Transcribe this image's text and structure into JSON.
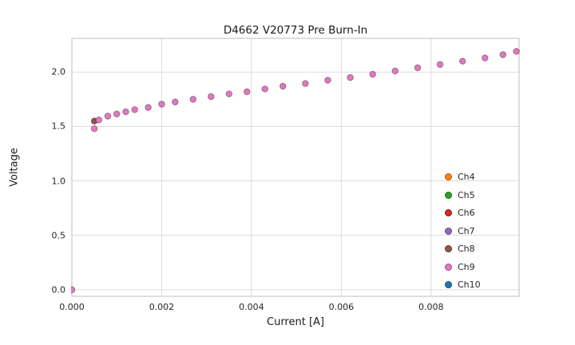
{
  "chart_data": {
    "type": "scatter",
    "title": "D4662 V20773 Pre Burn-In",
    "xlabel": "Current [A]",
    "ylabel": "Voltage",
    "xlim": [
      0,
      0.00996
    ],
    "ylim": [
      -0.06,
      2.31
    ],
    "grid": true,
    "legend_position": "lower right",
    "xticks": {
      "values": [
        0,
        0.002,
        0.004,
        0.006,
        0.008
      ],
      "labels": [
        "0.000",
        "0.002",
        "0.004",
        "0.006",
        "0.008"
      ]
    },
    "yticks": {
      "values": [
        0,
        0.5,
        1.0,
        1.5,
        2.0
      ],
      "labels": [
        "0.0",
        "0.5",
        "1.0",
        "1.5",
        "2.0"
      ]
    },
    "series": [
      {
        "name": "Ch4",
        "color": "#ff7f0e",
        "points": []
      },
      {
        "name": "Ch5",
        "color": "#2ca02c",
        "points": []
      },
      {
        "name": "Ch6",
        "color": "#d62728",
        "points": []
      },
      {
        "name": "Ch7",
        "color": "#9467bd",
        "points": []
      },
      {
        "name": "Ch8",
        "color": "#8c564b",
        "points": [
          [
            0.0005,
            1.55
          ]
        ]
      },
      {
        "name": "Ch9",
        "color": "#e377c2",
        "points": [
          [
            0.0,
            0.0
          ],
          [
            0.0005,
            1.48
          ],
          [
            0.0006,
            1.56
          ],
          [
            0.0008,
            1.595
          ],
          [
            0.001,
            1.615
          ],
          [
            0.0012,
            1.635
          ],
          [
            0.0014,
            1.655
          ],
          [
            0.0017,
            1.675
          ],
          [
            0.002,
            1.705
          ],
          [
            0.0023,
            1.725
          ],
          [
            0.0027,
            1.75
          ],
          [
            0.0031,
            1.775
          ],
          [
            0.0035,
            1.8
          ],
          [
            0.0039,
            1.82
          ],
          [
            0.0043,
            1.845
          ],
          [
            0.0047,
            1.87
          ],
          [
            0.0052,
            1.895
          ],
          [
            0.0057,
            1.925
          ],
          [
            0.0062,
            1.95
          ],
          [
            0.0067,
            1.98
          ],
          [
            0.0072,
            2.01
          ],
          [
            0.0077,
            2.04
          ],
          [
            0.0082,
            2.07
          ],
          [
            0.0087,
            2.1
          ],
          [
            0.0092,
            2.13
          ],
          [
            0.0096,
            2.16
          ],
          [
            0.0099,
            2.19
          ]
        ]
      },
      {
        "name": "Ch10",
        "color": "#1f77b4",
        "points": []
      }
    ]
  },
  "style_colors": {
    "grid": "#dcdcdc",
    "spine": "#c9c9c9",
    "tick_text": "#262626",
    "marker_edge": "rgba(0,0,0,0.35)"
  }
}
